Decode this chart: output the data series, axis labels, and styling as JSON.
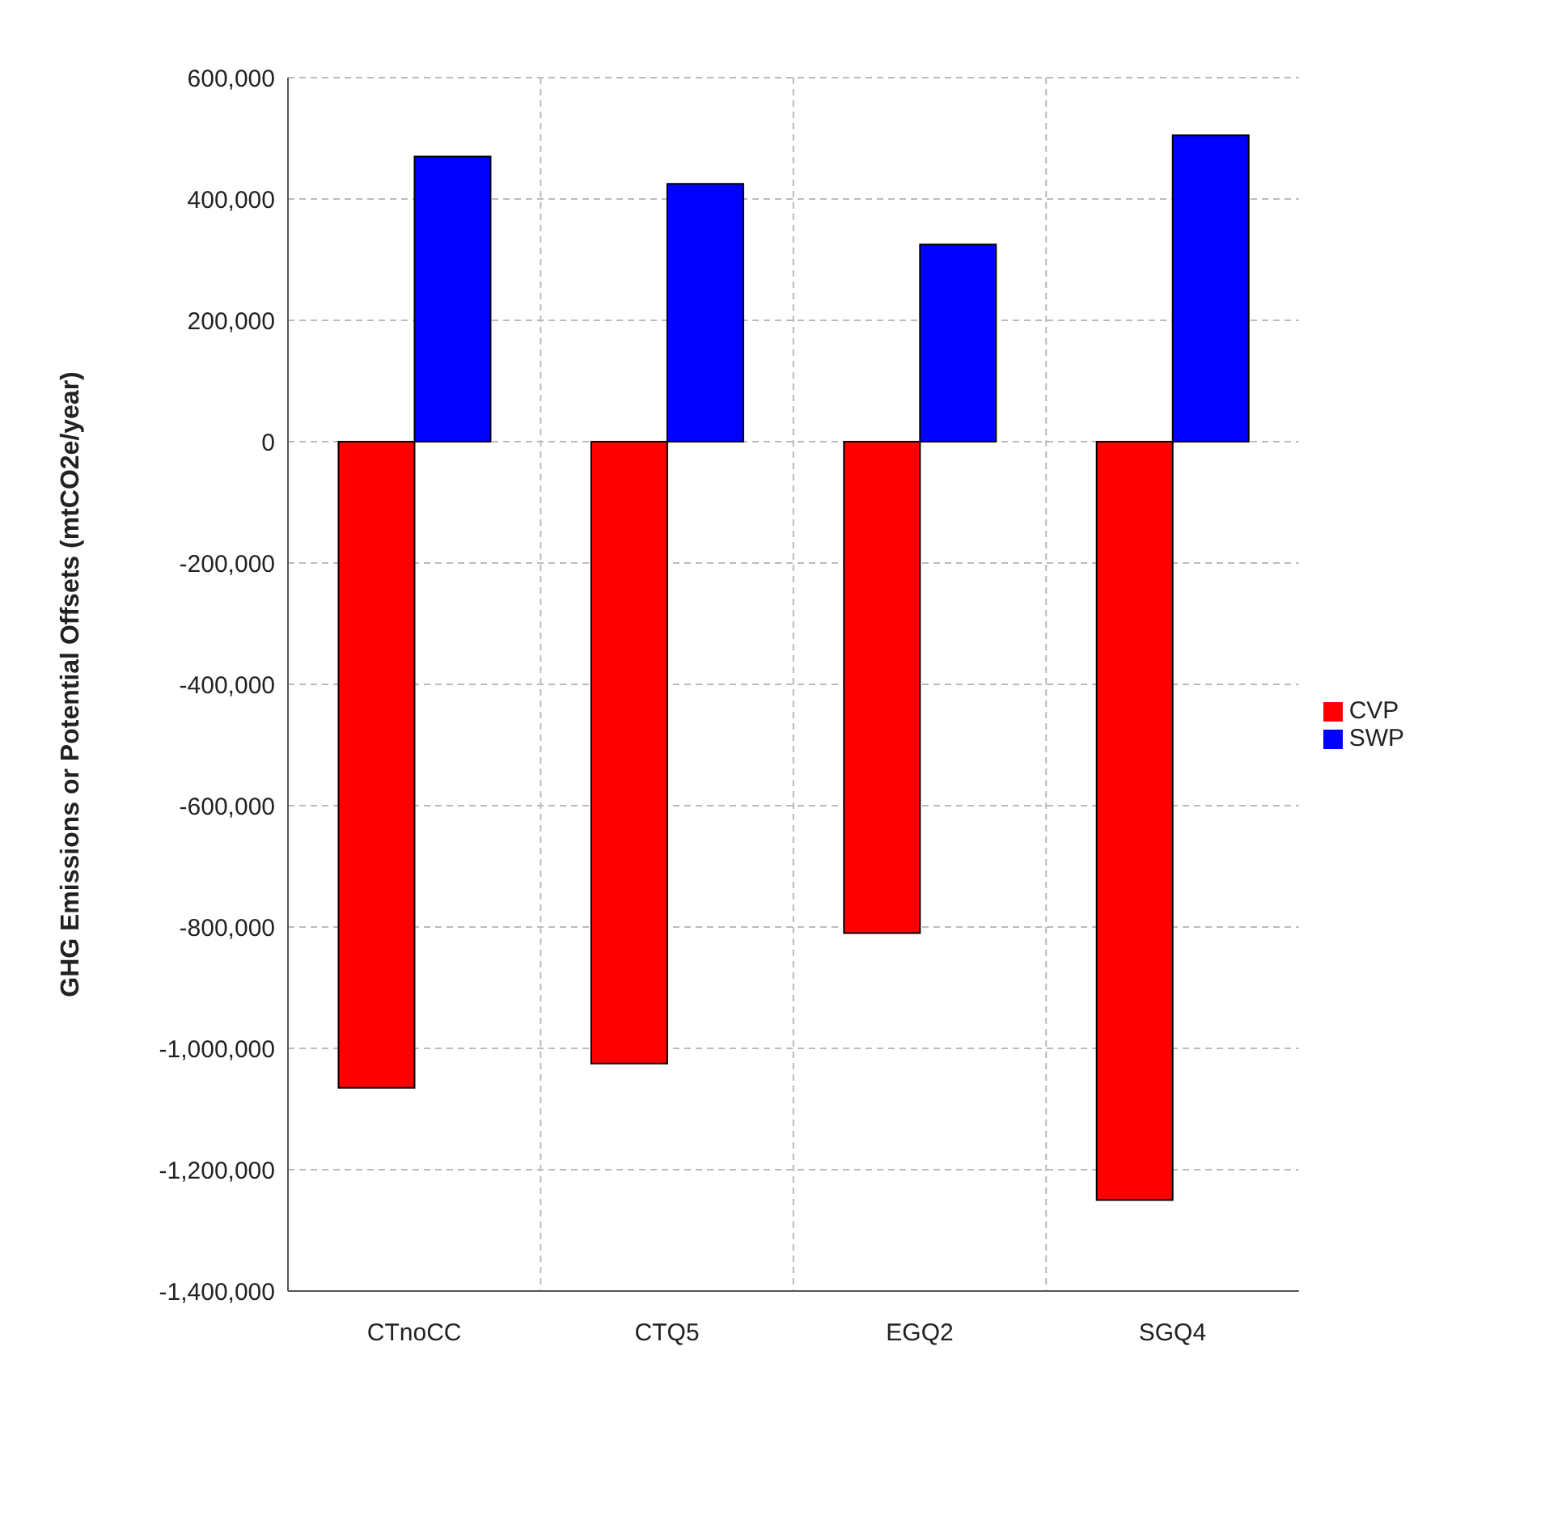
{
  "chart_data": {
    "type": "bar",
    "ylabel": "GHG Emissions or Potential Offsets (mtCO2e/year)",
    "categories": [
      "CTnoCC",
      "CTQ5",
      "EGQ2",
      "SGQ4"
    ],
    "series": [
      {
        "name": "CVP",
        "color": "#ff0000",
        "values": [
          -1065000,
          -1025000,
          -810000,
          -1250000
        ]
      },
      {
        "name": "SWP",
        "color": "#0000ff",
        "values": [
          470000,
          425000,
          325000,
          505000
        ]
      }
    ],
    "ylim": [
      -1400000,
      600000
    ],
    "yticks": [
      {
        "value": -1400000,
        "label": "-1,400,000"
      },
      {
        "value": -1200000,
        "label": "-1,200,000"
      },
      {
        "value": -1000000,
        "label": "-1,000,000"
      },
      {
        "value": -800000,
        "label": "-800,000"
      },
      {
        "value": -600000,
        "label": "-600,000"
      },
      {
        "value": -400000,
        "label": "-400,000"
      },
      {
        "value": -200000,
        "label": "-200,000"
      },
      {
        "value": 0,
        "label": "0"
      },
      {
        "value": 200000,
        "label": "200,000"
      },
      {
        "value": 400000,
        "label": "400,000"
      },
      {
        "value": 600000,
        "label": "600,000"
      }
    ],
    "grid": true,
    "legend": "right"
  }
}
